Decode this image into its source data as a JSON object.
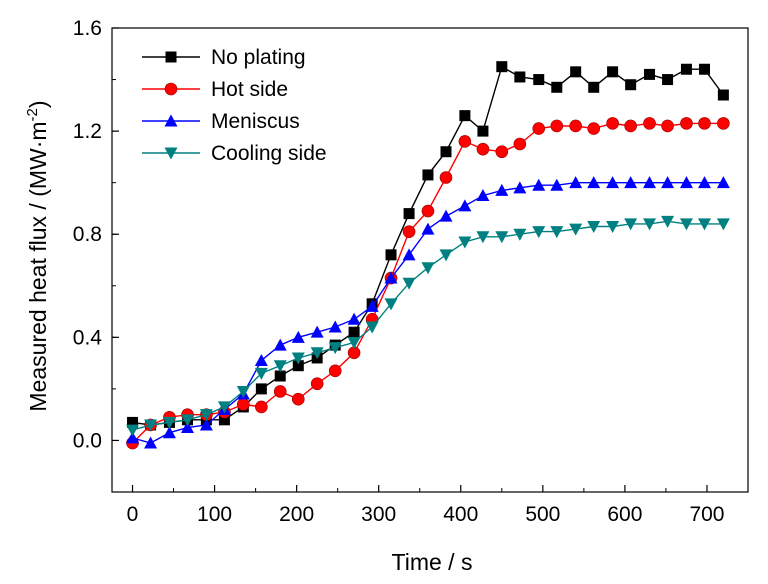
{
  "chart_data": {
    "type": "line",
    "xlabel": "Time / s",
    "ylabel": "Measured heat flux / (MW·m",
    "ylabel_exponent": "-2",
    "ylabel_close": ")",
    "xlim": [
      -25,
      750
    ],
    "ylim": [
      -0.2,
      1.6
    ],
    "xticks": [
      0,
      100,
      200,
      300,
      400,
      500,
      600,
      700
    ],
    "xtick_labels": [
      "0",
      "100",
      "200",
      "300",
      "400",
      "500",
      "600",
      "700"
    ],
    "yticks": [
      0.0,
      0.4,
      0.8,
      1.2,
      1.6
    ],
    "ytick_labels": [
      "0.0",
      "0.4",
      "0.8",
      "1.2",
      "1.6"
    ],
    "grid": false,
    "legend_position": "top-left",
    "series": [
      {
        "name": "No plating",
        "color": "#000000",
        "marker": "square",
        "x": [
          0,
          22,
          45,
          67,
          90,
          112,
          135,
          157,
          180,
          202,
          225,
          247,
          270,
          292,
          315,
          337,
          360,
          382,
          405,
          427,
          450,
          472,
          495,
          517,
          540,
          562,
          585,
          607,
          630,
          652,
          675,
          697,
          720
        ],
        "y": [
          0.07,
          0.06,
          0.07,
          0.08,
          0.08,
          0.08,
          0.13,
          0.2,
          0.25,
          0.29,
          0.32,
          0.37,
          0.42,
          0.53,
          0.72,
          0.88,
          1.03,
          1.12,
          1.26,
          1.2,
          1.45,
          1.41,
          1.4,
          1.37,
          1.43,
          1.37,
          1.43,
          1.38,
          1.42,
          1.4,
          1.44,
          1.44,
          1.34
        ]
      },
      {
        "name": "Hot side",
        "color": "#ff0000",
        "marker": "circle",
        "x": [
          0,
          22,
          45,
          67,
          90,
          112,
          135,
          157,
          180,
          202,
          225,
          247,
          270,
          292,
          315,
          337,
          360,
          382,
          405,
          427,
          450,
          472,
          495,
          517,
          540,
          562,
          585,
          607,
          630,
          652,
          675,
          697,
          720
        ],
        "y": [
          -0.01,
          0.06,
          0.09,
          0.1,
          0.1,
          0.11,
          0.14,
          0.13,
          0.19,
          0.16,
          0.22,
          0.27,
          0.34,
          0.47,
          0.63,
          0.81,
          0.89,
          1.02,
          1.16,
          1.13,
          1.12,
          1.15,
          1.21,
          1.22,
          1.22,
          1.21,
          1.23,
          1.22,
          1.23,
          1.22,
          1.23,
          1.23,
          1.23
        ]
      },
      {
        "name": "Meniscus",
        "color": "#0000ff",
        "marker": "triangle-up",
        "x": [
          0,
          22,
          45,
          67,
          90,
          112,
          135,
          157,
          180,
          202,
          225,
          247,
          270,
          292,
          315,
          337,
          360,
          382,
          405,
          427,
          450,
          472,
          495,
          517,
          540,
          562,
          585,
          607,
          630,
          652,
          675,
          697,
          720
        ],
        "y": [
          0.01,
          -0.01,
          0.03,
          0.05,
          0.06,
          0.12,
          0.18,
          0.31,
          0.37,
          0.4,
          0.42,
          0.44,
          0.47,
          0.52,
          0.63,
          0.72,
          0.82,
          0.87,
          0.91,
          0.95,
          0.97,
          0.98,
          0.99,
          0.99,
          1.0,
          1.0,
          1.0,
          1.0,
          1.0,
          1.0,
          1.0,
          1.0,
          1.0
        ]
      },
      {
        "name": "Cooling side",
        "color": "#008080",
        "marker": "triangle-down",
        "x": [
          0,
          22,
          45,
          67,
          90,
          112,
          135,
          157,
          180,
          202,
          225,
          247,
          270,
          292,
          315,
          337,
          360,
          382,
          405,
          427,
          450,
          472,
          495,
          517,
          540,
          562,
          585,
          607,
          630,
          652,
          675,
          697,
          720
        ],
        "y": [
          0.04,
          0.06,
          0.07,
          0.08,
          0.1,
          0.13,
          0.19,
          0.26,
          0.29,
          0.32,
          0.34,
          0.36,
          0.38,
          0.44,
          0.53,
          0.61,
          0.67,
          0.72,
          0.77,
          0.79,
          0.79,
          0.8,
          0.81,
          0.81,
          0.82,
          0.83,
          0.83,
          0.84,
          0.84,
          0.85,
          0.84,
          0.84,
          0.84
        ]
      }
    ]
  }
}
